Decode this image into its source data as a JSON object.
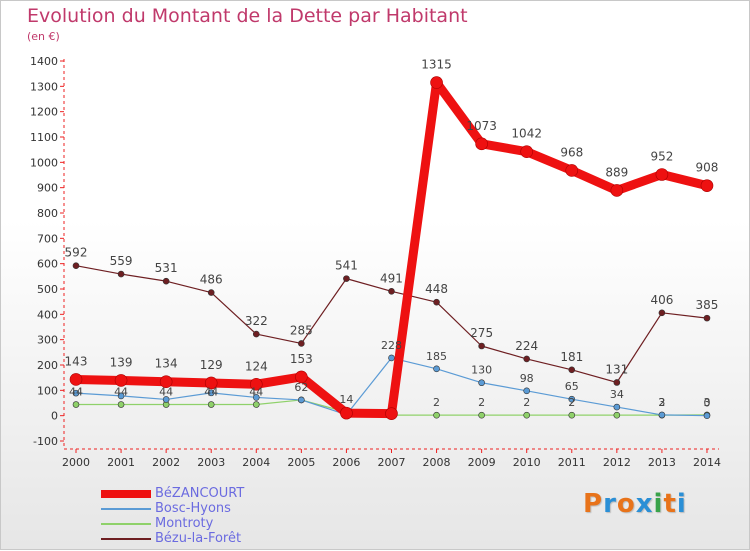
{
  "title": "Evolution du Montant de la Dette par Habitant",
  "subtitle": "(en €)",
  "logo": {
    "text": "Proxiti",
    "colors": [
      "#e8731a",
      "#2a8fd6",
      "#e8731a",
      "#2a8fd6",
      "#3aa34a",
      "#e8731a",
      "#2a8fd6"
    ]
  },
  "chart_data": {
    "type": "line",
    "xlabel": "",
    "ylabel": "",
    "categories": [
      "2000",
      "2001",
      "2002",
      "2003",
      "2004",
      "2005",
      "2006",
      "2007",
      "2008",
      "2009",
      "2010",
      "2011",
      "2012",
      "2013",
      "2014"
    ],
    "ylim": [
      -100,
      1400
    ],
    "yticks": [
      -100,
      0,
      100,
      200,
      300,
      400,
      500,
      600,
      700,
      800,
      900,
      1000,
      1100,
      1200,
      1300,
      1400
    ],
    "grid": false,
    "legend_position": "bottom-left",
    "series": [
      {
        "name": "BéZANCOURT",
        "color": "#ee1111",
        "values": [
          143,
          139,
          134,
          129,
          124,
          153,
          10,
          8,
          1315,
          1073,
          1042,
          968,
          889,
          952,
          908
        ],
        "labels": [
          "143",
          "139",
          "134",
          "129",
          "124",
          "153",
          "",
          "",
          "1315",
          "1073",
          "1042",
          "968",
          "889",
          "952",
          "908"
        ]
      },
      {
        "name": "Bosc-Hyons",
        "color": "#5b9bd5",
        "values": [
          89,
          78,
          64,
          90,
          72,
          62,
          4,
          228,
          185,
          130,
          98,
          65,
          34,
          3,
          0
        ],
        "labels": [
          "",
          "",
          "",
          "",
          "",
          "",
          "",
          "228",
          "185",
          "130",
          "98",
          "65",
          "34",
          "3",
          "0"
        ]
      },
      {
        "name": "Montroty",
        "color": "#8fd16a",
        "values": [
          44,
          44,
          44,
          44,
          44,
          62,
          14,
          2,
          2,
          2,
          2,
          2,
          2,
          2,
          3
        ],
        "labels": [
          "44",
          "44",
          "44",
          "44",
          "44",
          "62",
          "14",
          "",
          "2",
          "2",
          "2",
          "2",
          "",
          "2",
          "3"
        ]
      },
      {
        "name": "Bézu-la-Forêt",
        "color": "#6e1f22",
        "values": [
          592,
          559,
          531,
          486,
          322,
          285,
          541,
          491,
          448,
          275,
          224,
          181,
          131,
          406,
          385
        ],
        "labels": [
          "592",
          "559",
          "531",
          "486",
          "322",
          "285",
          "541",
          "491",
          "448",
          "275",
          "224",
          "181",
          "131",
          "406",
          "385"
        ]
      }
    ]
  }
}
